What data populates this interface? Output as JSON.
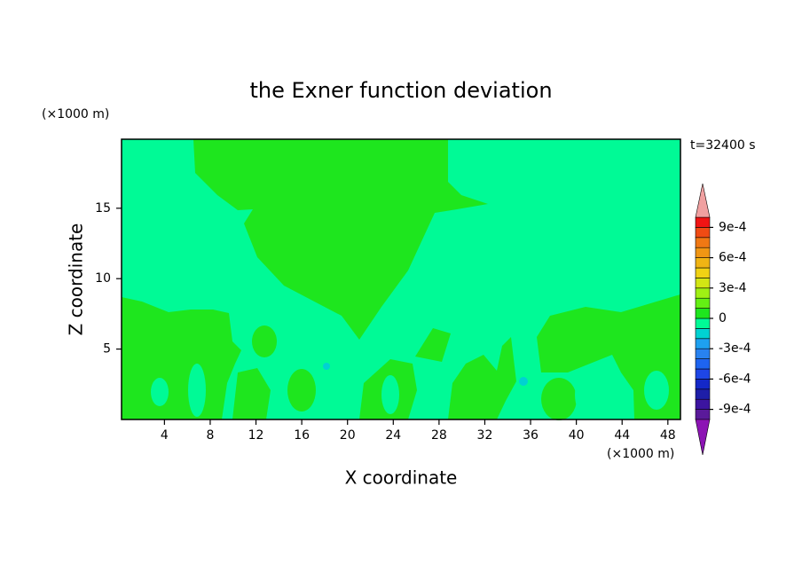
{
  "chart_data": {
    "type": "contour",
    "title": "the Exner function deviation",
    "xlabel": "X coordinate",
    "ylabel": "Z coordinate",
    "x_unit": "(×1000 m)",
    "y_unit": "(×1000 m)",
    "time_label": "t=32400 s",
    "xlim": [
      0.25,
      49.1
    ],
    "ylim": [
      0,
      19.9
    ],
    "xticks": [
      4,
      8,
      12,
      16,
      20,
      24,
      28,
      32,
      36,
      40,
      44,
      48
    ],
    "yticks": [
      5,
      10,
      15
    ],
    "colorbar": {
      "lim": [
        -0.001,
        0.001
      ],
      "colors": [
        "#5a1a9a",
        "#3c14a0",
        "#1e1ea8",
        "#1428c8",
        "#1e46e6",
        "#1e64f0",
        "#2882f0",
        "#1ea0f0",
        "#00d2d2",
        "#00fa96",
        "#1ee61e",
        "#64f014",
        "#a0f014",
        "#d2e614",
        "#f0d214",
        "#f0b414",
        "#f09614",
        "#f07814",
        "#f04b14",
        "#f01414"
      ],
      "under_color": "#8c14b4",
      "over_color": "#f0a0a0",
      "ticks": [
        {
          "value": -0.0009,
          "label": "-9e-4"
        },
        {
          "value": -0.0006,
          "label": "-6e-4"
        },
        {
          "value": -0.0003,
          "label": "-3e-4"
        },
        0,
        {
          "value": 0.0003,
          "label": "3e-4"
        },
        {
          "value": 0.0006,
          "label": "6e-4"
        },
        {
          "value": 0.0009,
          "label": "9e-4"
        }
      ]
    }
  }
}
